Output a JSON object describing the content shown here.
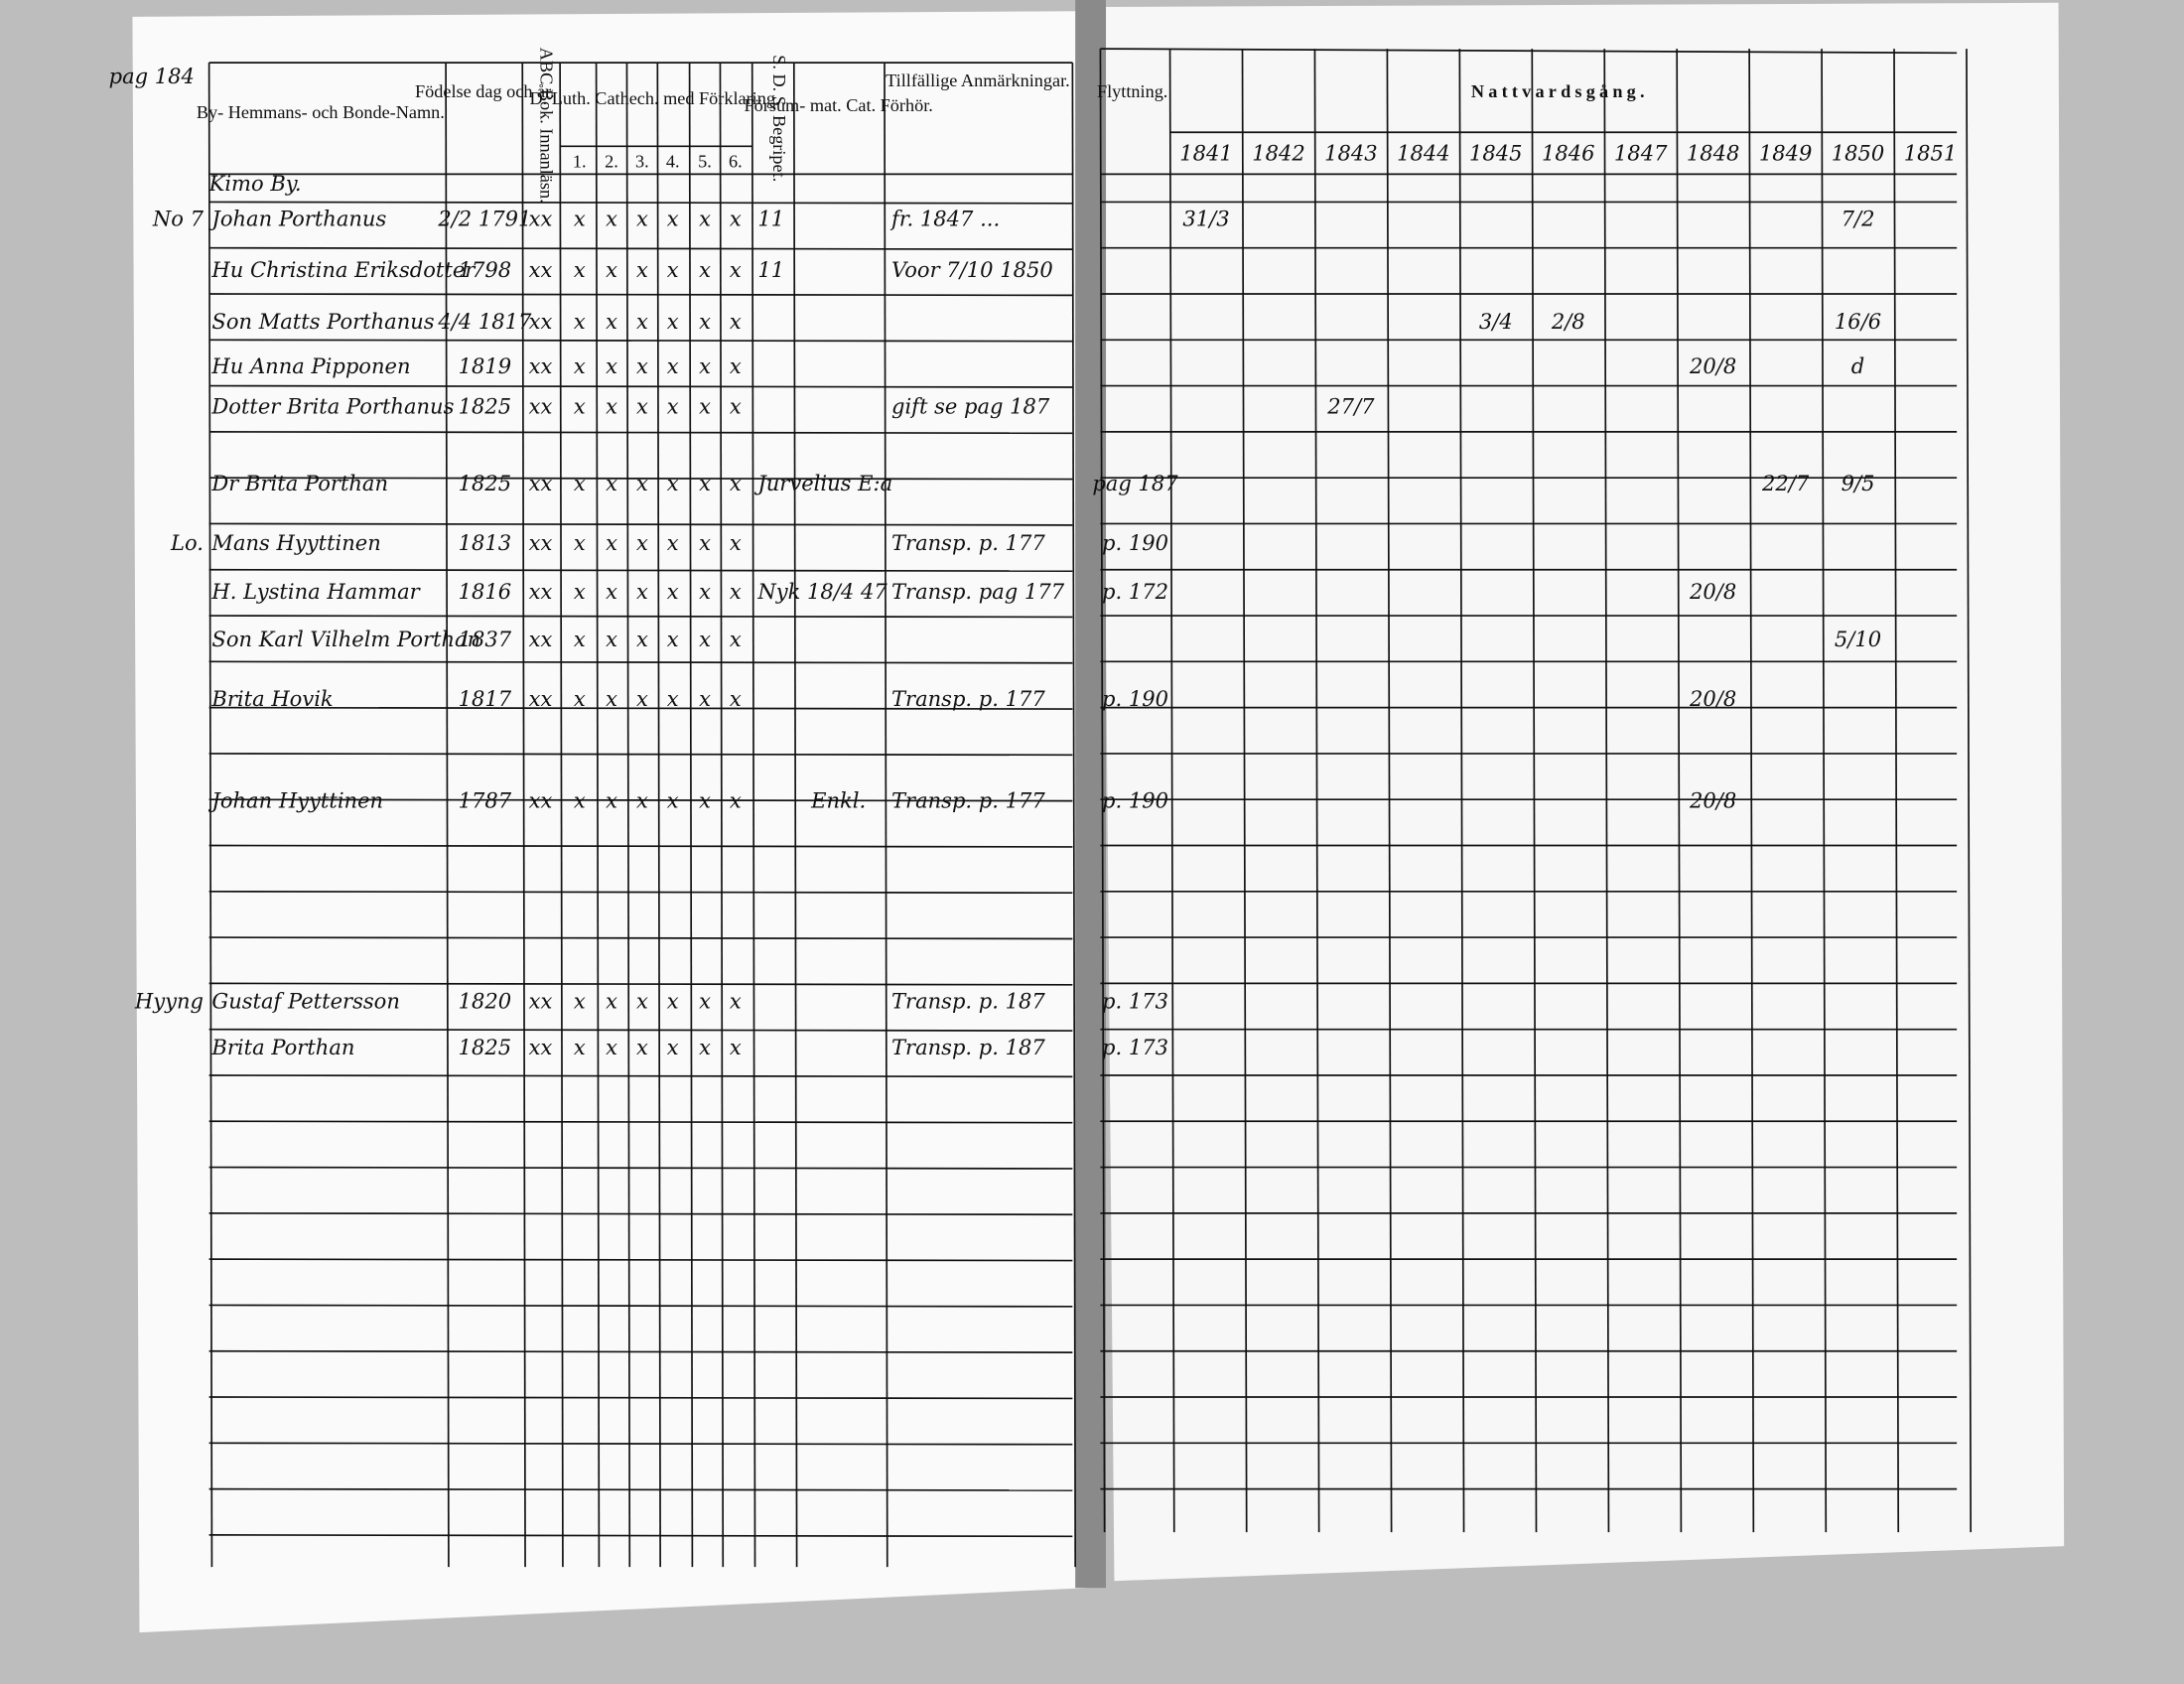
{
  "left_page": {
    "page_note": "pag 184",
    "headers": {
      "name": "By- Hemmans- och Bonde-Namn.",
      "birth": "Födelse dag och år.",
      "abc": "ABC Bok. Innanläsn.",
      "catechism": "D. Luth. Cathech. med Förklaring.",
      "cat_parts": [
        "1.",
        "2.",
        "3.",
        "4.",
        "5.",
        "6."
      ],
      "sds": "S. D. S. Begripet.",
      "forsum": "Försum- mat. Cat. Förhör.",
      "remarks": "Tillfällige Anmärkningar."
    },
    "village": "Kimo By.",
    "rows": [
      {
        "mark": "No 7",
        "name": "Johan Porthanus",
        "birth": "2/2 1791",
        "abc": "xx",
        "cat": [
          "x",
          "x",
          "x",
          "x",
          "x",
          "x"
        ],
        "sds": "11",
        "remark": "fr. 1847 ..."
      },
      {
        "name": "Hu Christina Eriksdotter",
        "birth": "1798",
        "abc": "xx",
        "cat": [
          "x",
          "x",
          "x",
          "x",
          "x",
          "x"
        ],
        "sds": "11",
        "remark": "Voor 7/10 1850"
      },
      {
        "name": "Son Matts Porthanus",
        "birth": "4/4 1817",
        "abc": "xx",
        "cat": [
          "x",
          "x",
          "x",
          "x",
          "x",
          "x"
        ]
      },
      {
        "name": "Hu Anna Pipponen",
        "birth": "1819",
        "abc": "xx",
        "cat": [
          "x",
          "x",
          "x",
          "x",
          "x",
          "x"
        ]
      },
      {
        "name": "Dotter Brita Porthanus",
        "birth": "1825",
        "abc": "xx",
        "cat": [
          "x",
          "x",
          "x",
          "x",
          "x",
          "x"
        ],
        "remark": "gift se pag 187"
      },
      {
        "name": "Dr Brita Porthan",
        "birth": "1825",
        "abc": "xx",
        "cat": [
          "x",
          "x",
          "x",
          "x",
          "x",
          "x"
        ],
        "sds": "Jurvelius E:a"
      },
      {
        "mark": "Lo.",
        "name": "Mans Hyyttinen",
        "birth": "1813",
        "abc": "xx",
        "cat": [
          "x",
          "x",
          "x",
          "x",
          "x",
          "x"
        ],
        "remark": "Transp. p. 177"
      },
      {
        "name": "H. Lystina Hammar",
        "birth": "1816",
        "abc": "xx",
        "cat": [
          "x",
          "x",
          "x",
          "x",
          "x",
          "x"
        ],
        "sds": "Nyk 18/4 47",
        "remark": "Transp. pag 177"
      },
      {
        "name": "Son Karl Vilhelm Porthan",
        "birth": "1837",
        "abc": "xx",
        "cat": [
          "x",
          "x",
          "x",
          "x",
          "x",
          "x"
        ]
      },
      {
        "name": "Brita Hovik",
        "birth": "1817",
        "abc": "xx",
        "cat": [
          "x",
          "x",
          "x",
          "x",
          "x",
          "x"
        ],
        "remark": "Transp. p. 177"
      },
      {
        "name": "Johan Hyyttinen",
        "birth": "1787",
        "abc": "xx",
        "cat": [
          "x",
          "x",
          "x",
          "x",
          "x",
          "x"
        ],
        "forsum": "Enkl.",
        "remark": "Transp. p. 177"
      },
      {
        "mark": "Hyyng",
        "name": "Gustaf Pettersson",
        "birth": "1820",
        "abc": "xx",
        "cat": [
          "x",
          "x",
          "x",
          "x",
          "x",
          "x"
        ],
        "remark": "Transp. p. 187"
      },
      {
        "name": "Brita Porthan",
        "birth": "1825",
        "abc": "xx",
        "cat": [
          "x",
          "x",
          "x",
          "x",
          "x",
          "x"
        ],
        "remark": "Transp. p. 187"
      }
    ]
  },
  "right_page": {
    "col_header": "Flyttning.",
    "title": "Nattvardsgång.",
    "years": [
      "1841",
      "1842",
      "1843",
      "1844",
      "1845",
      "1846",
      "1847",
      "1848",
      "1849",
      "1850",
      "1851"
    ],
    "rows": [
      {
        "communion": {
          "1841": "31/3",
          "1850": "7/2"
        }
      },
      {},
      {
        "communion": {
          "1845": "3/4",
          "1846": "2/8",
          "1850": "16/6"
        }
      },
      {
        "communion": {
          "1848": "20/8",
          "1850": "d"
        }
      },
      {
        "communion": {
          "1843": "27/7"
        }
      },
      {
        "ref": "pag 187",
        "communion": {
          "1849": "22/7",
          "1850": "9/5"
        }
      },
      {
        "ref": "p. 190"
      },
      {
        "ref": "p. 172",
        "communion": {
          "1848": "20/8"
        }
      },
      {
        "communion": {
          "1850": "5/10"
        }
      },
      {
        "ref": "p. 190",
        "communion": {
          "1848": "20/8"
        }
      },
      {
        "ref": "p. 190",
        "communion": {
          "1848": "20/8"
        }
      },
      {
        "ref": "p. 173"
      },
      {
        "ref": "p. 173"
      }
    ]
  }
}
